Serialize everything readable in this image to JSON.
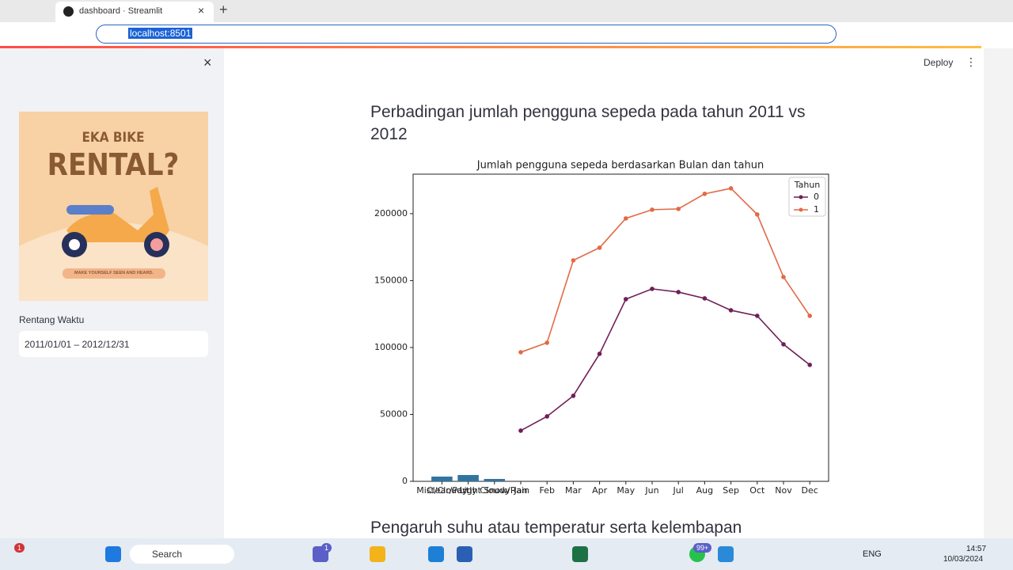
{
  "browser": {
    "tab_title": "dashboard · Streamlit",
    "url": "localhost:8501"
  },
  "app_header": {
    "deploy": "Deploy"
  },
  "sidebar": {
    "banner": {
      "line1": "EKA BIKE",
      "line2": "RENTAL?",
      "tagline": "MAKE YOURSELF SEEN AND HEARD."
    },
    "date_label": "Rentang Waktu",
    "date_value": "2011/01/01 – 2012/12/31"
  },
  "main": {
    "heading": "Perbadingan jumlah pengguna sepeda pada tahun 2011 vs 2012",
    "next_heading": "Pengaruh suhu atau temperatur serta kelembapan"
  },
  "chart_data": {
    "type": "line",
    "title": "Jumlah pengguna sepeda berdasarkan Bulan dan tahun",
    "categories": [
      "Mist/Cloudy",
      "Clear/Partly Cloudy",
      "Light Snow/Rain",
      "Jan",
      "Feb",
      "Mar",
      "Apr",
      "May",
      "Jun",
      "Jul",
      "Aug",
      "Sep",
      "Oct",
      "Nov",
      "Dec"
    ],
    "bars": {
      "color": "#3274a1",
      "values": [
        3550,
        4730,
        1780,
        null,
        null,
        null,
        null,
        null,
        null,
        null,
        null,
        null,
        null,
        null,
        null
      ]
    },
    "series": [
      {
        "name": "0",
        "color": "#701f57",
        "values": [
          null,
          null,
          null,
          37870,
          48520,
          63900,
          95270,
          136100,
          143800,
          141400,
          136700,
          127800,
          123670,
          102400,
          87000
        ]
      },
      {
        "name": "1",
        "color": "#e26a46",
        "values": [
          null,
          null,
          null,
          96450,
          103550,
          165100,
          174550,
          196450,
          202950,
          203550,
          214800,
          218900,
          199400,
          152650,
          123670
        ]
      }
    ],
    "legend_title": "Tahun",
    "legend": "upper right",
    "ylim": [
      0,
      229500
    ],
    "yticks": [
      0,
      50000,
      100000,
      150000,
      200000
    ],
    "grid": false
  },
  "taskbar": {
    "search": "Search",
    "language": "ENG",
    "time": "14:57",
    "date": "10/03/2024",
    "badges": [
      "1",
      "1",
      "99+"
    ]
  }
}
